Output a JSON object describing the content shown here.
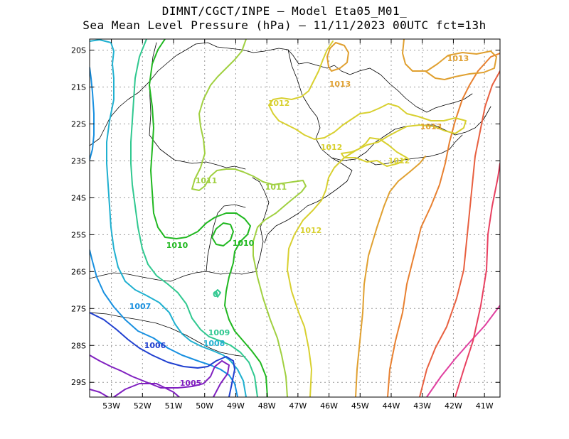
{
  "title": {
    "line1": "DIMNT/CGCT/INPE –  Model Eta05_M01_",
    "line2": "Sea Mean Level Pressure (hPa) – 11/11/2023 00UTC fct=13h"
  },
  "axes": {
    "x_ticks": [
      "53W",
      "52W",
      "51W",
      "50W",
      "49W",
      "48W",
      "47W",
      "46W",
      "45W",
      "44W",
      "43W",
      "42W",
      "41W"
    ],
    "y_ticks": [
      "20S",
      "21S",
      "22S",
      "23S",
      "24S",
      "25S",
      "26S",
      "27S",
      "28S",
      "29S"
    ],
    "lon_range": [
      -53.7,
      -40.5
    ],
    "lat_range": [
      -29.4,
      -19.7
    ],
    "grid": true
  },
  "contour_labels": [
    {
      "text": "1013",
      "color": "#e0a030"
    },
    {
      "text": "1013",
      "color": "#e0a030"
    },
    {
      "text": "1013",
      "color": "#e0a030"
    },
    {
      "text": "1012",
      "color": "#d8d030"
    },
    {
      "text": "1012",
      "color": "#d8d030"
    },
    {
      "text": "1012",
      "color": "#d8d030"
    },
    {
      "text": "1012",
      "color": "#d8d030"
    },
    {
      "text": "1011",
      "color": "#a0d040"
    },
    {
      "text": "1011",
      "color": "#a0d040"
    },
    {
      "text": "1010",
      "color": "#20b820"
    },
    {
      "text": "1010",
      "color": "#20b820"
    },
    {
      "text": "1009",
      "color": "#30c890"
    },
    {
      "text": "1008",
      "color": "#20b0d0"
    },
    {
      "text": "1007",
      "color": "#1890e0"
    },
    {
      "text": "1006",
      "color": "#2040d0"
    },
    {
      "text": "1005",
      "color": "#8020c0"
    },
    {
      "text": "0",
      "color": "#30c890"
    }
  ]
}
